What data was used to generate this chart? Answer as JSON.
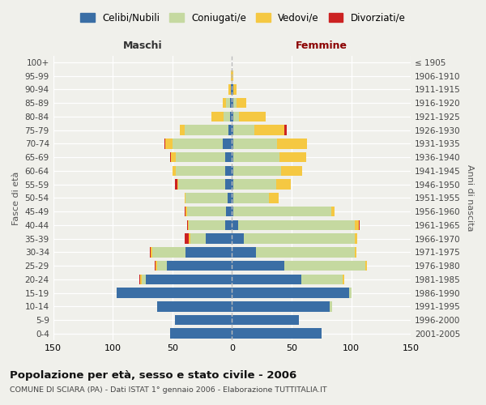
{
  "age_groups": [
    "0-4",
    "5-9",
    "10-14",
    "15-19",
    "20-24",
    "25-29",
    "30-34",
    "35-39",
    "40-44",
    "45-49",
    "50-54",
    "55-59",
    "60-64",
    "65-69",
    "70-74",
    "75-79",
    "80-84",
    "85-89",
    "90-94",
    "95-99",
    "100+"
  ],
  "birth_years": [
    "2001-2005",
    "1996-2000",
    "1991-1995",
    "1986-1990",
    "1981-1985",
    "1976-1980",
    "1971-1975",
    "1966-1970",
    "1961-1965",
    "1956-1960",
    "1951-1955",
    "1946-1950",
    "1941-1945",
    "1936-1940",
    "1931-1935",
    "1926-1930",
    "1921-1925",
    "1916-1920",
    "1911-1915",
    "1906-1910",
    "≤ 1905"
  ],
  "males": {
    "celibi": [
      52,
      48,
      63,
      97,
      72,
      55,
      39,
      22,
      6,
      5,
      4,
      6,
      6,
      6,
      8,
      3,
      2,
      2,
      1,
      0,
      0
    ],
    "coniugati": [
      0,
      0,
      0,
      0,
      4,
      8,
      28,
      13,
      30,
      33,
      35,
      39,
      41,
      41,
      42,
      37,
      5,
      3,
      0,
      0,
      0
    ],
    "vedovi": [
      0,
      0,
      0,
      0,
      1,
      1,
      1,
      1,
      1,
      1,
      1,
      1,
      3,
      4,
      6,
      4,
      10,
      3,
      2,
      1,
      0
    ],
    "divorziati": [
      0,
      0,
      0,
      0,
      1,
      1,
      1,
      4,
      1,
      1,
      0,
      2,
      0,
      1,
      1,
      0,
      0,
      0,
      0,
      0,
      0
    ]
  },
  "females": {
    "nubili": [
      75,
      56,
      82,
      98,
      58,
      44,
      20,
      10,
      5,
      1,
      1,
      1,
      1,
      1,
      1,
      1,
      1,
      1,
      1,
      0,
      0
    ],
    "coniugate": [
      0,
      0,
      2,
      2,
      35,
      68,
      83,
      93,
      98,
      82,
      30,
      36,
      40,
      39,
      37,
      18,
      5,
      3,
      0,
      0,
      0
    ],
    "vedove": [
      0,
      0,
      0,
      0,
      1,
      1,
      1,
      2,
      3,
      3,
      8,
      12,
      18,
      22,
      25,
      25,
      22,
      8,
      3,
      1,
      0
    ],
    "divorziate": [
      0,
      0,
      0,
      0,
      0,
      0,
      0,
      0,
      1,
      0,
      0,
      0,
      0,
      0,
      0,
      2,
      0,
      0,
      0,
      0,
      0
    ]
  },
  "colors": {
    "celibi": "#3a6ea5",
    "coniugati": "#c5d9a0",
    "vedovi": "#f5c842",
    "divorziati": "#cc2222"
  },
  "xlim": 150,
  "title": "Popolazione per età, sesso e stato civile - 2006",
  "subtitle": "COMUNE DI SCIARA (PA) - Dati ISTAT 1° gennaio 2006 - Elaborazione TUTTITALIA.IT",
  "ylabel_left": "Fasce di età",
  "ylabel_right": "Anni di nascita",
  "xlabel_maschi": "Maschi",
  "xlabel_femmine": "Femmine",
  "legend_labels": [
    "Celibi/Nubili",
    "Coniugati/e",
    "Vedovi/e",
    "Divorziati/e"
  ],
  "bg_color": "#f0f0eb",
  "plot_bg": "#f0f0eb",
  "grid_color": "#ffffff",
  "maschi_color": "#333333",
  "femmine_color": "#8b0000"
}
